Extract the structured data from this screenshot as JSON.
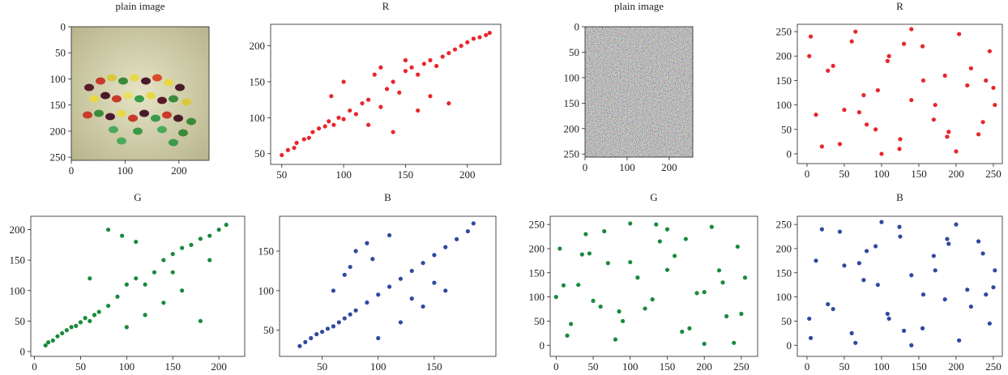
{
  "chart_data": [
    {
      "type": "image",
      "title": "plain image",
      "xlim": [
        0,
        256
      ],
      "ylim": [
        256,
        0
      ],
      "xticks": [
        0,
        100,
        200
      ],
      "yticks": [
        0,
        50,
        100,
        150,
        200,
        250
      ]
    },
    {
      "type": "scatter",
      "title": "R",
      "color": "#e8262b",
      "xlim": [
        41,
        227
      ],
      "ylim": [
        35,
        230
      ],
      "xticks": [
        50,
        100,
        150,
        200
      ],
      "yticks": [
        50,
        100,
        150,
        200
      ],
      "x": [
        50,
        55,
        60,
        62,
        68,
        72,
        75,
        80,
        85,
        88,
        92,
        96,
        100,
        105,
        110,
        115,
        120,
        125,
        130,
        135,
        140,
        145,
        150,
        155,
        160,
        165,
        170,
        175,
        180,
        185,
        190,
        195,
        200,
        205,
        210,
        215,
        218,
        120,
        140,
        160,
        100,
        170,
        150,
        130,
        185,
        90
      ],
      "y": [
        48,
        55,
        58,
        65,
        70,
        72,
        80,
        85,
        88,
        95,
        90,
        100,
        98,
        110,
        105,
        120,
        125,
        160,
        115,
        140,
        150,
        135,
        165,
        170,
        160,
        175,
        180,
        172,
        185,
        190,
        195,
        200,
        205,
        210,
        212,
        215,
        218,
        90,
        80,
        110,
        150,
        130,
        180,
        170,
        120,
        130
      ]
    },
    {
      "type": "image",
      "title": "plain image",
      "xlim": [
        0,
        256
      ],
      "ylim": [
        256,
        0
      ],
      "xticks": [
        0,
        100,
        200
      ],
      "yticks": [
        0,
        50,
        100,
        150,
        200,
        250
      ]
    },
    {
      "type": "scatter",
      "title": "R",
      "color": "#e8262b",
      "xlim": [
        -13,
        262
      ],
      "ylim": [
        -20,
        265
      ],
      "xticks": [
        0,
        50,
        100,
        150,
        200,
        250
      ],
      "yticks": [
        0,
        50,
        100,
        150,
        200,
        250
      ],
      "x": [
        5,
        20,
        35,
        50,
        65,
        80,
        95,
        110,
        125,
        140,
        155,
        170,
        185,
        200,
        215,
        230,
        245,
        252,
        12,
        28,
        44,
        60,
        76,
        92,
        108,
        124,
        140,
        156,
        172,
        188,
        204,
        220,
        236,
        250,
        3,
        70,
        130,
        190,
        240,
        100
      ],
      "y": [
        240,
        15,
        180,
        90,
        250,
        60,
        130,
        200,
        30,
        110,
        220,
        70,
        160,
        5,
        140,
        40,
        210,
        100,
        80,
        170,
        20,
        230,
        120,
        50,
        190,
        10,
        255,
        150,
        100,
        35,
        245,
        175,
        65,
        135,
        200,
        85,
        225,
        45,
        150,
        0
      ]
    },
    {
      "type": "scatter",
      "title": "G",
      "color": "#1a8a3c",
      "xlim": [
        -4,
        228
      ],
      "ylim": [
        -8,
        222
      ],
      "xticks": [
        0,
        50,
        100,
        150,
        200
      ],
      "yticks": [
        0,
        50,
        100,
        150,
        200
      ],
      "x": [
        12,
        15,
        20,
        25,
        30,
        35,
        40,
        45,
        50,
        55,
        60,
        65,
        70,
        80,
        90,
        100,
        110,
        120,
        130,
        140,
        150,
        160,
        170,
        180,
        190,
        200,
        208,
        60,
        80,
        100,
        120,
        140,
        160,
        180,
        110,
        150,
        95,
        190
      ],
      "y": [
        10,
        15,
        18,
        25,
        30,
        35,
        40,
        42,
        48,
        55,
        50,
        60,
        65,
        75,
        90,
        110,
        120,
        110,
        130,
        150,
        160,
        170,
        175,
        185,
        190,
        200,
        208,
        120,
        200,
        40,
        60,
        80,
        100,
        50,
        180,
        130,
        190,
        150
      ]
    },
    {
      "type": "scatter",
      "title": "B",
      "color": "#2e4aa0",
      "xlim": [
        12,
        205
      ],
      "ylim": [
        17,
        194
      ],
      "xticks": [
        50,
        100,
        150
      ],
      "yticks": [
        50,
        100,
        150
      ],
      "x": [
        30,
        35,
        40,
        45,
        50,
        55,
        60,
        65,
        70,
        75,
        80,
        90,
        100,
        110,
        120,
        130,
        140,
        150,
        160,
        170,
        180,
        185,
        60,
        70,
        80,
        90,
        100,
        110,
        120,
        140,
        150,
        95,
        130,
        75,
        160
      ],
      "y": [
        30,
        35,
        40,
        45,
        48,
        52,
        55,
        60,
        65,
        70,
        75,
        85,
        95,
        105,
        115,
        125,
        135,
        145,
        155,
        165,
        175,
        185,
        100,
        120,
        150,
        160,
        40,
        170,
        60,
        80,
        110,
        140,
        90,
        130,
        100
      ]
    },
    {
      "type": "scatter",
      "title": "G",
      "color": "#1a8a3c",
      "xlim": [
        -8,
        272
      ],
      "ylim": [
        -23,
        267
      ],
      "xticks": [
        0,
        50,
        100,
        150,
        200,
        250
      ],
      "yticks": [
        0,
        50,
        100,
        150,
        200,
        250
      ],
      "x": [
        240,
        15,
        180,
        90,
        250,
        60,
        130,
        200,
        30,
        110,
        220,
        70,
        160,
        5,
        140,
        40,
        210,
        100,
        80,
        170,
        20,
        230,
        120,
        50,
        190,
        10,
        255,
        150,
        100,
        35,
        245,
        175,
        65,
        135,
        200,
        85,
        225,
        45,
        150,
        0
      ],
      "y": [
        5,
        20,
        35,
        50,
        65,
        80,
        95,
        110,
        125,
        140,
        155,
        170,
        185,
        200,
        215,
        230,
        245,
        252,
        12,
        28,
        44,
        60,
        76,
        92,
        108,
        124,
        140,
        156,
        172,
        188,
        204,
        220,
        236,
        250,
        3,
        70,
        130,
        190,
        240,
        100
      ]
    },
    {
      "type": "scatter",
      "title": "B",
      "color": "#2e4aa0",
      "xlim": [
        -13,
        262
      ],
      "ylim": [
        -23,
        267
      ],
      "xticks": [
        0,
        50,
        100,
        150,
        200,
        250
      ],
      "yticks": [
        0,
        50,
        100,
        150,
        200,
        250
      ],
      "x": [
        5,
        20,
        35,
        50,
        65,
        80,
        95,
        110,
        125,
        140,
        155,
        170,
        185,
        200,
        215,
        230,
        245,
        252,
        12,
        28,
        44,
        60,
        76,
        92,
        108,
        124,
        140,
        156,
        172,
        188,
        204,
        220,
        236,
        250,
        3,
        70,
        130,
        190,
        240,
        100
      ],
      "y": [
        15,
        240,
        75,
        165,
        5,
        195,
        125,
        55,
        225,
        145,
        35,
        185,
        95,
        250,
        115,
        215,
        45,
        155,
        175,
        85,
        235,
        25,
        135,
        205,
        65,
        245,
        0,
        105,
        155,
        220,
        10,
        80,
        190,
        120,
        55,
        170,
        30,
        210,
        105,
        255
      ]
    }
  ]
}
